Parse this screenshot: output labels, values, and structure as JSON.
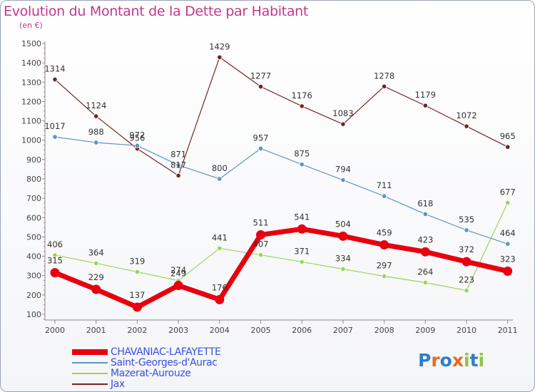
{
  "title": "Evolution du Montant de la Dette par Habitant",
  "unit_label": "(en €)",
  "logo_text": "Proxiti",
  "chart_data": {
    "type": "line",
    "title": "Evolution du Montant de la Dette par Habitant",
    "ylabel": "(en €)",
    "xlabel": "",
    "ylim": [
      100,
      1500
    ],
    "yticks": [
      100,
      200,
      300,
      400,
      500,
      600,
      700,
      800,
      900,
      1000,
      1100,
      1200,
      1300,
      1400,
      1500
    ],
    "grid": false,
    "legend_position": "bottom-left",
    "categories": [
      "2000",
      "2001",
      "2002",
      "2003",
      "2004",
      "2005",
      "2006",
      "2007",
      "2008",
      "2009",
      "2010",
      "2011"
    ],
    "series": [
      {
        "name": "CHAVANIAC-LAFAYETTE",
        "color": "#e8000e",
        "values": [
          315,
          229,
          137,
          249,
          176,
          511,
          541,
          504,
          459,
          423,
          372,
          323
        ]
      },
      {
        "name": "Saint-Georges-d'Aurac",
        "color": "#5f93c8",
        "values": [
          1017,
          988,
          972,
          871,
          800,
          957,
          875,
          794,
          711,
          618,
          535,
          464
        ]
      },
      {
        "name": "Mazerat-Aurouze",
        "color": "#9bd458",
        "values": [
          406,
          364,
          319,
          274,
          441,
          407,
          371,
          334,
          297,
          264,
          223,
          677
        ]
      },
      {
        "name": "Jax",
        "color": "#7a2222",
        "values": [
          1314,
          1124,
          956,
          817,
          1429,
          1277,
          1176,
          1083,
          1278,
          1179,
          1072,
          965
        ]
      }
    ],
    "labels_shown": [
      [
        "315",
        "229",
        "137",
        "249",
        "176",
        "511",
        "541",
        "504",
        "459",
        "423",
        "372",
        "323"
      ],
      [
        "1017",
        "988",
        "972",
        "871",
        "800",
        "957",
        "875",
        "794",
        "711",
        "618",
        "535",
        "464"
      ],
      [
        "406",
        "364",
        "319",
        "274",
        "441",
        "407",
        "371",
        "334",
        "297",
        "264",
        "223",
        "677"
      ],
      [
        "1314",
        "1124",
        "956",
        "817",
        "1429",
        "1277",
        "1176",
        "1083",
        "1278",
        "1179",
        "1072",
        "965"
      ]
    ]
  }
}
